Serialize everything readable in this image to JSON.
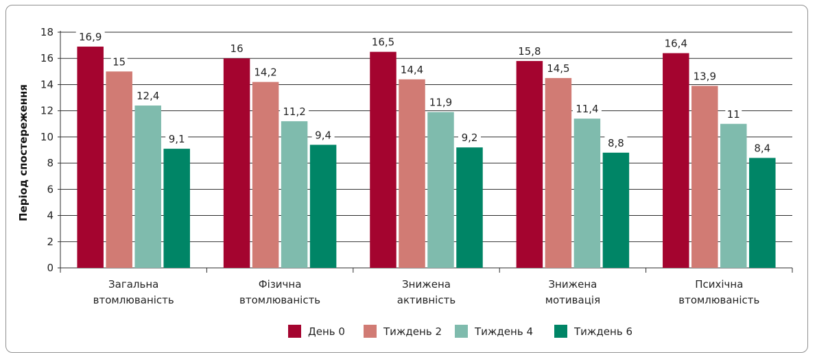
{
  "chart_data": {
    "type": "bar",
    "ylabel": "Період спостереження",
    "xlabel": "",
    "ylim": [
      0,
      18
    ],
    "yticks": [
      "0",
      "2",
      "4",
      "6",
      "8",
      "10",
      "12",
      "14",
      "16",
      "18"
    ],
    "categories": [
      [
        "Загальна",
        "втомлюваність"
      ],
      [
        "Фізична",
        "втомлюваність"
      ],
      [
        "Знижена",
        "активність"
      ],
      [
        "Знижена",
        "мотивація"
      ],
      [
        "Психічна",
        "втомлюваність"
      ]
    ],
    "series": [
      {
        "name": "День 0",
        "color": "#a4042f",
        "values": [
          16.9,
          16,
          16.5,
          15.8,
          16.4
        ],
        "labels": [
          "16,9",
          "16",
          "16,5",
          "15,8",
          "16,4"
        ]
      },
      {
        "name": "Тиждень 2",
        "color": "#d17b74",
        "values": [
          15,
          14.2,
          14.4,
          14.5,
          13.9
        ],
        "labels": [
          "15",
          "14,2",
          "14,4",
          "14,5",
          "13,9"
        ]
      },
      {
        "name": "Тиждень 4",
        "color": "#7fbbad",
        "values": [
          12.4,
          11.2,
          11.9,
          11.4,
          11
        ],
        "labels": [
          "12,4",
          "11,2",
          "11,9",
          "11,4",
          "11"
        ]
      },
      {
        "name": "Тиждень 6",
        "color": "#008566",
        "values": [
          9.1,
          9.4,
          9.2,
          8.8,
          8.4
        ],
        "labels": [
          "9,1",
          "9,4",
          "9,2",
          "8,8",
          "8,4"
        ]
      }
    ],
    "grid": true,
    "legend_position": "bottom"
  }
}
